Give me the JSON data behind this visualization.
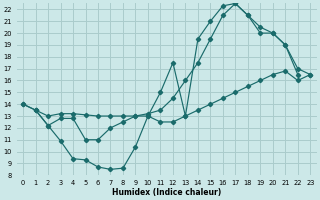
{
  "xlabel": "Humidex (Indice chaleur)",
  "xlim": [
    -0.5,
    23.5
  ],
  "ylim": [
    8,
    22.5
  ],
  "xticks": [
    0,
    1,
    2,
    3,
    4,
    5,
    6,
    7,
    8,
    9,
    10,
    11,
    12,
    13,
    14,
    15,
    16,
    17,
    18,
    19,
    20,
    21,
    22,
    23
  ],
  "yticks": [
    8,
    9,
    10,
    11,
    12,
    13,
    14,
    15,
    16,
    17,
    18,
    19,
    20,
    21,
    22
  ],
  "bg_color": "#cce8e8",
  "grid_color": "#aacccc",
  "line_color": "#1a6b6b",
  "line1_x": [
    0,
    1,
    2,
    3,
    4,
    5,
    6,
    7,
    8,
    9,
    10,
    11,
    12,
    13,
    14,
    15,
    16,
    17,
    18,
    19,
    20,
    21,
    22
  ],
  "line1_y": [
    14,
    13.5,
    12.2,
    10.9,
    9.4,
    9.3,
    8.7,
    8.5,
    8.6,
    10.4,
    13.0,
    15.0,
    17.5,
    13.0,
    19.5,
    21.0,
    22.3,
    22.5,
    21.5,
    20.5,
    20.0,
    19.0,
    16.5
  ],
  "line2_x": [
    0,
    1,
    2,
    3,
    4,
    5,
    6,
    7,
    8,
    9,
    10,
    11,
    12,
    13,
    14,
    15,
    16,
    17,
    18,
    19,
    20,
    21,
    22,
    23
  ],
  "line2_y": [
    14,
    13.5,
    13.0,
    13.2,
    13.2,
    13.1,
    13.0,
    13.0,
    13.0,
    13.0,
    13.2,
    13.5,
    14.5,
    16.0,
    17.5,
    19.5,
    21.5,
    22.5,
    21.5,
    20.0,
    20.0,
    19.0,
    17.0,
    16.5
  ],
  "line3_x": [
    1,
    2,
    3,
    4,
    5,
    6,
    7,
    8,
    9,
    10,
    11,
    12,
    13,
    14,
    15,
    16,
    17,
    18,
    19,
    20,
    21,
    22,
    23
  ],
  "line3_y": [
    13.5,
    12.2,
    12.8,
    12.8,
    11.0,
    11.0,
    12.0,
    12.5,
    13.0,
    13.0,
    12.5,
    12.5,
    13.0,
    13.5,
    14.0,
    14.5,
    15.0,
    15.5,
    16.0,
    16.5,
    16.8,
    16.0,
    16.5
  ]
}
